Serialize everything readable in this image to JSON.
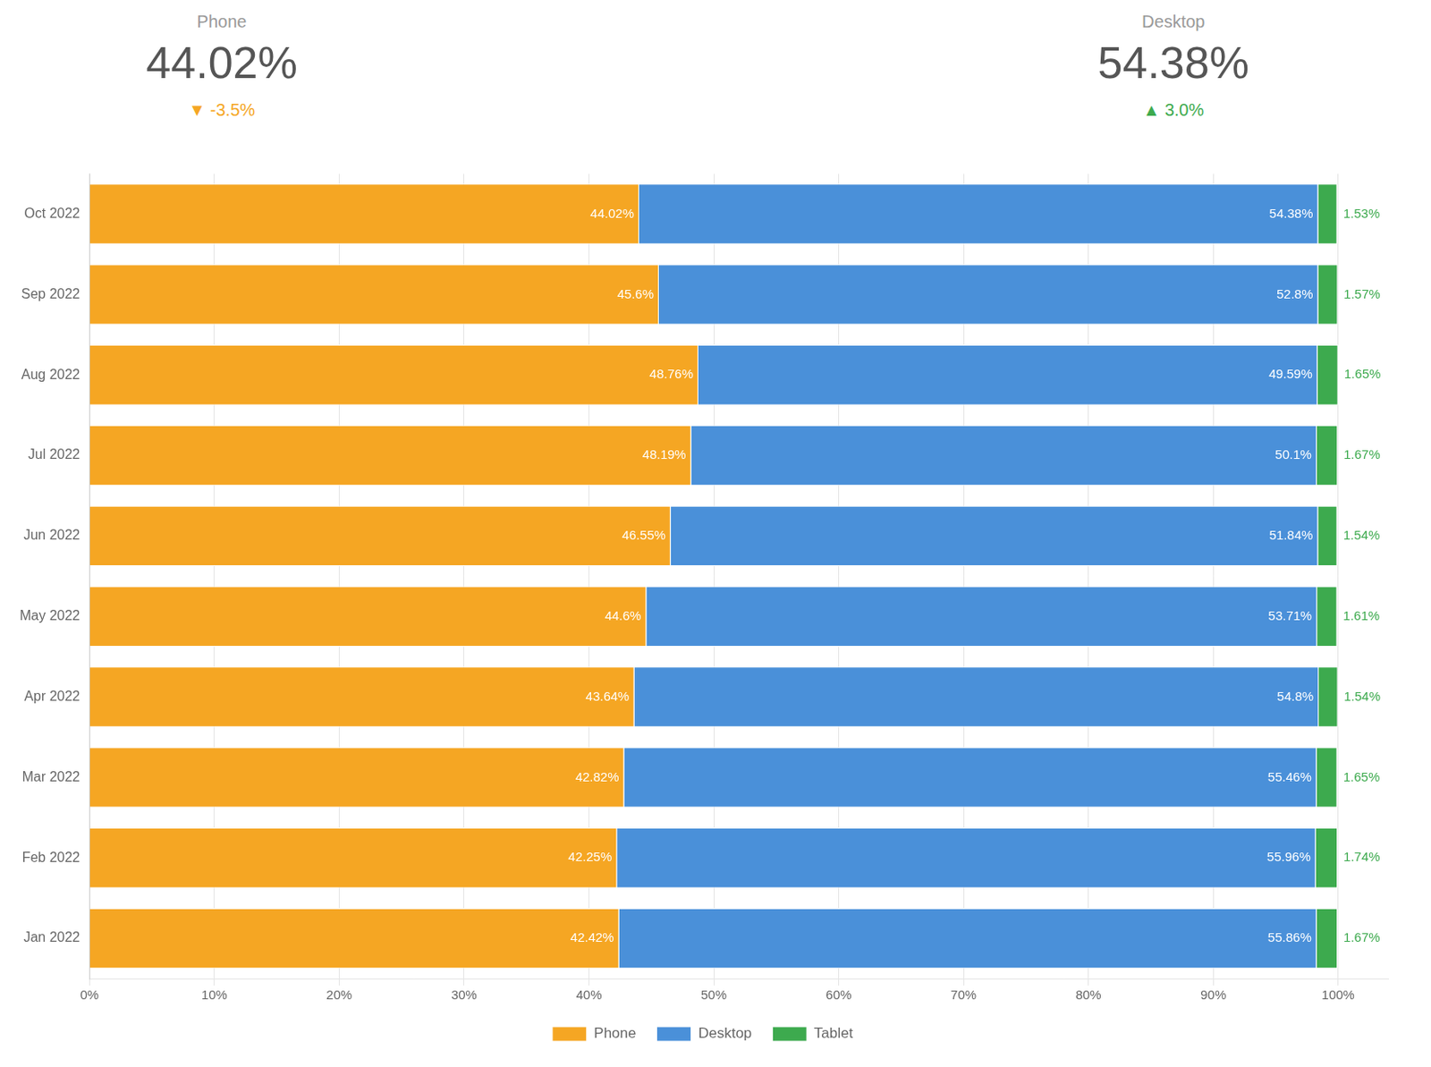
{
  "chart_data": {
    "type": "bar",
    "orientation": "horizontal",
    "stacked": true,
    "categories": [
      "Oct 2022",
      "Sep 2022",
      "Aug 2022",
      "Jul 2022",
      "Jun 2022",
      "May 2022",
      "Apr 2022",
      "Mar 2022",
      "Feb 2022",
      "Jan 2022"
    ],
    "series": [
      {
        "name": "Phone",
        "color": "#F5A623",
        "values": [
          44.02,
          45.6,
          48.76,
          48.19,
          46.55,
          44.6,
          43.64,
          42.82,
          42.25,
          42.42
        ],
        "value_labels": [
          "44.02%",
          "45.6%",
          "48.76%",
          "48.19%",
          "46.55%",
          "44.6%",
          "43.64%",
          "42.82%",
          "42.25%",
          "42.42%"
        ]
      },
      {
        "name": "Desktop",
        "color": "#4A90D9",
        "values": [
          54.38,
          52.8,
          49.59,
          50.1,
          51.84,
          53.71,
          54.8,
          55.46,
          55.96,
          55.86
        ],
        "value_labels": [
          "54.38%",
          "52.8%",
          "49.59%",
          "50.1%",
          "51.84%",
          "53.71%",
          "54.8%",
          "55.46%",
          "55.96%",
          "55.86%"
        ]
      },
      {
        "name": "Tablet",
        "color": "#3DAA4E",
        "values": [
          1.53,
          1.57,
          1.65,
          1.67,
          1.54,
          1.61,
          1.54,
          1.65,
          1.74,
          1.67
        ],
        "value_labels": [
          "1.53%",
          "1.57%",
          "1.65%",
          "1.67%",
          "1.54%",
          "1.61%",
          "1.54%",
          "1.65%",
          "1.74%",
          "1.67%"
        ]
      }
    ],
    "xlim": [
      0,
      104
    ],
    "xticks": [
      {
        "value": 0,
        "label": "0%"
      },
      {
        "value": 10,
        "label": "10%"
      },
      {
        "value": 20,
        "label": "20%"
      },
      {
        "value": 30,
        "label": "30%"
      },
      {
        "value": 40,
        "label": "40%"
      },
      {
        "value": 50,
        "label": "50%"
      },
      {
        "value": 60,
        "label": "60%"
      },
      {
        "value": 70,
        "label": "70%"
      },
      {
        "value": 80,
        "label": "80%"
      },
      {
        "value": 90,
        "label": "90%"
      },
      {
        "value": 100,
        "label": "100%"
      }
    ],
    "grid": true,
    "legend": "bottom",
    "data_labels": true,
    "annotations": [
      {
        "text": "Phone"
      },
      {
        "text": "44.02%"
      },
      {
        "text": "▼ -3.5%",
        "color": "#F5A623"
      },
      {
        "text": "Desktop"
      },
      {
        "text": "54.38%"
      },
      {
        "text": "▲ 3.0%",
        "color": "#3DAA4E"
      }
    ]
  }
}
